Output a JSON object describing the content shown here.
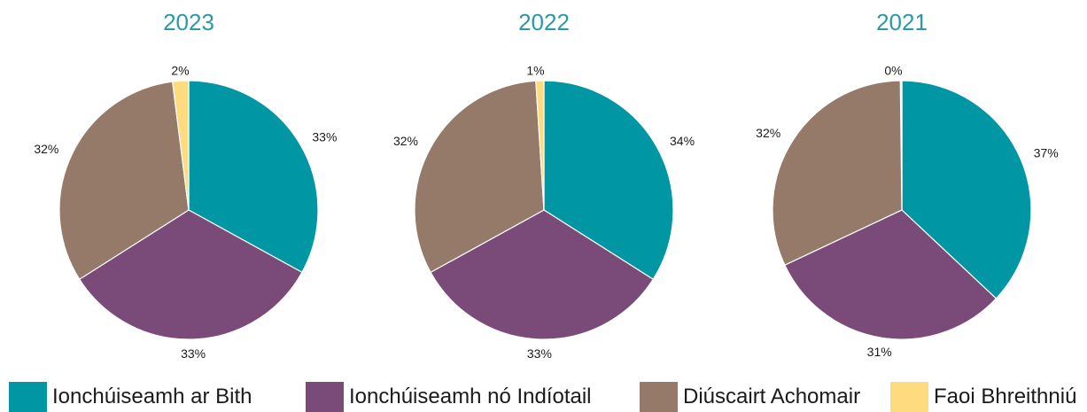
{
  "colors": {
    "title": "#2a9aa6",
    "label": "#1a1a1a",
    "slice_stroke": "#ffffff"
  },
  "legend": [
    {
      "label": "Ionchúiseamh ar Bith",
      "color": "#0096a3"
    },
    {
      "label": "Ionchúiseamh nó Indíotail",
      "color": "#7a4a78"
    },
    {
      "label": "Diúscairt Achomair",
      "color": "#957a6a"
    },
    {
      "label": "Faoi Bhreithniú",
      "color": "#fddb7e"
    }
  ],
  "chart_data": [
    {
      "type": "pie",
      "title": "2023",
      "categories": [
        "Ionchúiseamh ar Bith",
        "Ionchúiseamh nó Indíotail",
        "Diúscairt Achomair",
        "Faoi Bhreithniú"
      ],
      "values": [
        33,
        33,
        32,
        2
      ],
      "data_labels": [
        "33%",
        "33%",
        "32%",
        "2%"
      ],
      "colors": [
        "#0096a3",
        "#7a4a78",
        "#957a6a",
        "#fddb7e"
      ]
    },
    {
      "type": "pie",
      "title": "2022",
      "categories": [
        "Ionchúiseamh ar Bith",
        "Ionchúiseamh nó Indíotail",
        "Diúscairt Achomair",
        "Faoi Bhreithniú"
      ],
      "values": [
        34,
        33,
        32,
        1
      ],
      "data_labels": [
        "34%",
        "33%",
        "32%",
        "1%"
      ],
      "colors": [
        "#0096a3",
        "#7a4a78",
        "#957a6a",
        "#fddb7e"
      ]
    },
    {
      "type": "pie",
      "title": "2021",
      "categories": [
        "Ionchúiseamh ar Bith",
        "Ionchúiseamh nó Indíotail",
        "Diúscairt Achomair",
        "Faoi Bhreithniú"
      ],
      "values": [
        37,
        31,
        32,
        0
      ],
      "data_labels": [
        "37%",
        "31%",
        "32%",
        "0%"
      ],
      "colors": [
        "#0096a3",
        "#7a4a78",
        "#957a6a",
        "#fddb7e"
      ]
    }
  ]
}
